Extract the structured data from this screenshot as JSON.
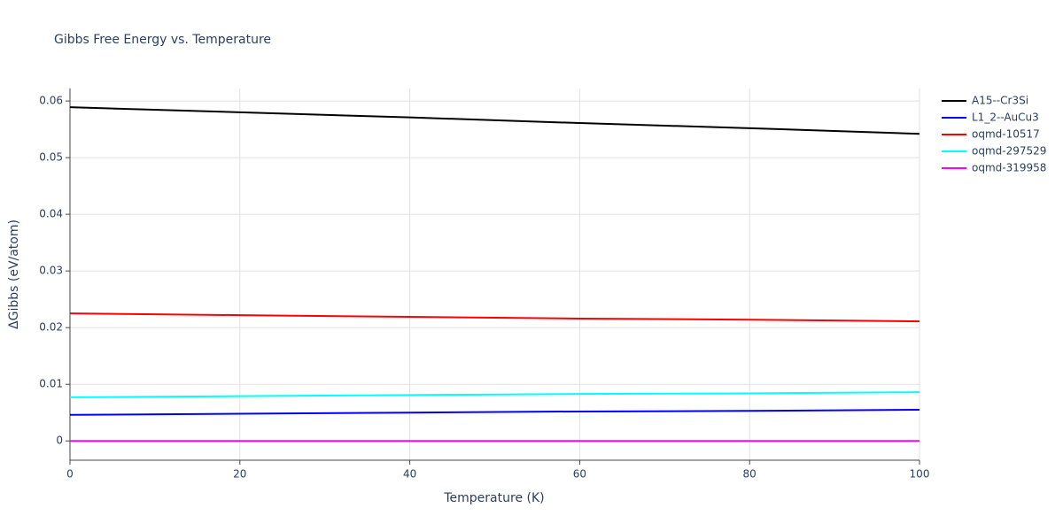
{
  "chart_data": {
    "type": "line",
    "title": "Gibbs Free Energy vs. Temperature",
    "xlabel": "Temperature (K)",
    "ylabel": "ΔGibbs (eV/atom)",
    "x": [
      0,
      20,
      40,
      60,
      80,
      100
    ],
    "series": [
      {
        "name": "A15--Cr3Si",
        "color": "#000000",
        "values": [
          0.0589,
          0.058,
          0.0571,
          0.0561,
          0.0552,
          0.0542
        ]
      },
      {
        "name": "L1_2--AuCu3",
        "color": "#0000ff",
        "values": [
          0.0046,
          0.0048,
          0.005,
          0.0052,
          0.0053,
          0.0055
        ]
      },
      {
        "name": "oqmd-10517",
        "color": "#ff0000",
        "values": [
          0.0225,
          0.0222,
          0.0219,
          0.0216,
          0.0214,
          0.0211
        ]
      },
      {
        "name": "oqmd-297529",
        "color": "#00ffff",
        "values": [
          0.0077,
          0.0079,
          0.0081,
          0.0083,
          0.0084,
          0.0086
        ]
      },
      {
        "name": "oqmd-319958",
        "color": "#ff00ff",
        "values": [
          0,
          0,
          0,
          0,
          0,
          0
        ]
      }
    ],
    "xlim": [
      0,
      100
    ],
    "xticks": [
      0,
      20,
      40,
      60,
      80,
      100
    ],
    "ylim": [
      -0.0034,
      0.0622
    ],
    "yticks": [
      0,
      0.01,
      0.02,
      0.03,
      0.04,
      0.05,
      0.06
    ],
    "grid": true,
    "legend": "right"
  }
}
